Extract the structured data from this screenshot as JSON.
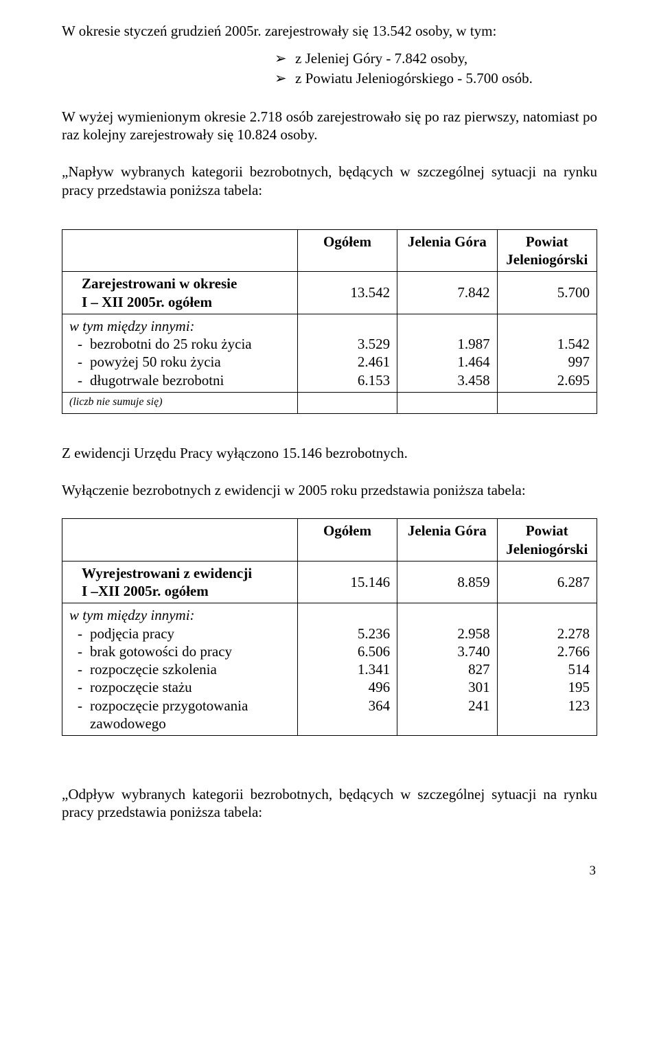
{
  "p1": "W okresie styczeń grudzień 2005r.  zarejestrowały się 13.542 osoby, w tym:",
  "bullets1": [
    "z Jeleniej Góry  -  7.842 osoby,",
    "z Powiatu Jeleniogórskiego  -  5.700 osób."
  ],
  "p2": "W wyżej wymienionym okresie 2.718 osób zarejestrowało się po raz pierwszy, natomiast po raz kolejny zarejestrowały się 10.824 osoby.",
  "p3": "„Napływ wybranych kategorii bezrobotnych, będących w szczególnej sytuacji na rynku pracy przedstawia poniższa tabela:",
  "table1": {
    "headers": [
      "Ogółem",
      "Jelenia Góra",
      "Powiat Jeleniogórski"
    ],
    "row1_label_strong": "Zarejestrowani w okresie",
    "row1_label_strong2": "I – XII 2005r.   ogółem",
    "row1_vals": [
      "13.542",
      "7.842",
      "5.700"
    ],
    "row_mid_em": "w tym między innymi:",
    "items": [
      "bezrobotni do 25 roku życia",
      "powyżej 50 roku życia",
      "długotrwale bezrobotni"
    ],
    "col_ogolem": [
      "3.529",
      "2.461",
      "6.153"
    ],
    "col_jg": [
      "1.987",
      "1.464",
      "3.458"
    ],
    "col_pj": [
      "1.542",
      "997",
      "2.695"
    ],
    "footnote": "(liczb nie sumuje się)"
  },
  "p4": "Z ewidencji Urzędu Pracy wyłączono 15.146 bezrobotnych.",
  "p5": "Wyłączenie bezrobotnych z ewidencji w 2005 roku przedstawia poniższa tabela:",
  "table2": {
    "headers": [
      "Ogółem",
      "Jelenia Góra",
      "Powiat Jeleniogórski"
    ],
    "row1_label_strong": "Wyrejestrowani z ewidencji",
    "row1_label_strong2": "I –XII 2005r.   ogółem",
    "row1_vals": [
      "15.146",
      "8.859",
      "6.287"
    ],
    "row_mid_em": "w tym między innymi:",
    "items": [
      "podjęcia  pracy",
      "brak gotowości do pracy",
      "rozpoczęcie szkolenia",
      "rozpoczęcie stażu",
      "rozpoczęcie przygotowania zawodowego"
    ],
    "col_ogolem": [
      "5.236",
      "6.506",
      "1.341",
      "496",
      "364"
    ],
    "col_jg": [
      "2.958",
      "3.740",
      "827",
      "301",
      "241"
    ],
    "col_pj": [
      "2.278",
      "2.766",
      "514",
      "195",
      "123"
    ]
  },
  "p6": "„Odpływ wybranych kategorii bezrobotnych, będących w szczególnej sytuacji na rynku pracy przedstawia poniższa tabela:",
  "page_number": "3"
}
